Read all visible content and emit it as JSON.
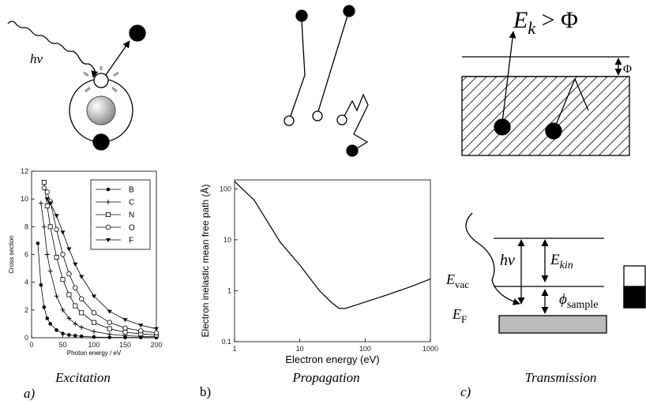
{
  "chart_data": [
    {
      "type": "line",
      "xlabel": "Photon energy / eV",
      "ylabel": "Cross section",
      "x": [
        10,
        15,
        20,
        25,
        30,
        40,
        50,
        60,
        70,
        80,
        100,
        125,
        150,
        175,
        200
      ],
      "series": [
        {
          "name": "B",
          "color": "#000000",
          "marker": "filled-circle",
          "values": [
            6.8,
            3.8,
            2.2,
            1.4,
            1.0,
            0.55,
            0.3,
            0.2,
            0.15,
            0.1,
            0.05,
            0.03,
            0.02,
            0.02,
            0.01
          ]
        },
        {
          "name": "C",
          "color": "#000000",
          "marker": "plus",
          "values": [
            null,
            9.7,
            8,
            6,
            4.8,
            3,
            2,
            1.4,
            1,
            0.75,
            0.45,
            0.25,
            0.15,
            0.1,
            0.07
          ]
        },
        {
          "name": "N",
          "color": "#000000",
          "marker": "square",
          "values": [
            null,
            null,
            11.2,
            9.5,
            8,
            5.8,
            4.2,
            3.1,
            2.3,
            1.8,
            1.1,
            0.65,
            0.4,
            0.28,
            0.2
          ]
        },
        {
          "name": "O",
          "color": "#000000",
          "marker": "open-circle",
          "values": [
            null,
            null,
            10.8,
            10.5,
            9.8,
            7.8,
            6,
            4.6,
            3.6,
            2.8,
            1.8,
            1.1,
            0.7,
            0.5,
            0.35
          ]
        },
        {
          "name": "F",
          "color": "#000000",
          "marker": "triangle-down",
          "values": [
            null,
            null,
            null,
            10,
            9.7,
            8.8,
            7.6,
            6.4,
            5.3,
            4.4,
            3,
            1.9,
            1.3,
            0.9,
            0.65
          ]
        }
      ],
      "xlim": [
        0,
        200
      ],
      "xticks": [
        0,
        50,
        100,
        150,
        200
      ],
      "ylim": [
        0,
        12
      ],
      "yticks": [
        0,
        2,
        4,
        6,
        8,
        10,
        12
      ],
      "legend": "upper right",
      "log_x": false,
      "log_y": false
    },
    {
      "type": "line",
      "xlabel": "Electron energy (eV)",
      "ylabel": "Electron inelastic mean free path (Å)",
      "x": [
        1,
        2,
        5,
        10,
        20,
        30,
        40,
        50,
        100,
        200,
        500,
        1000
      ],
      "series": [
        {
          "color": "#000000",
          "values": [
            140,
            60,
            9,
            3.2,
            1.0,
            0.6,
            0.45,
            0.45,
            0.6,
            0.8,
            1.2,
            1.7
          ]
        }
      ],
      "xlim": [
        1,
        1000
      ],
      "xticks": [
        1,
        10,
        100,
        1000
      ],
      "ylim": [
        0.1,
        150
      ],
      "yticks": [
        0.1,
        1,
        10,
        100
      ],
      "log_x": true,
      "log_y": true
    }
  ],
  "captions": [
    {
      "letter": "a)",
      "title": "Excitation"
    },
    {
      "letter": "b)",
      "title": "Propagation"
    },
    {
      "letter": "c)",
      "title": "Transmission"
    }
  ],
  "excitation": {
    "photon": "hν"
  },
  "transmission": {
    "relation": {
      "base": "E",
      "sub": "k",
      "rest": " > Φ"
    },
    "barrier": "Φ",
    "photon": "hν",
    "kinetic": {
      "base": "E",
      "sub": "kin"
    },
    "vacuum": {
      "base": "E",
      "sub": "vac"
    },
    "work_function": {
      "base": "ϕ",
      "sub": "sample"
    },
    "fermi": {
      "base": "E",
      "sub": "F"
    }
  }
}
